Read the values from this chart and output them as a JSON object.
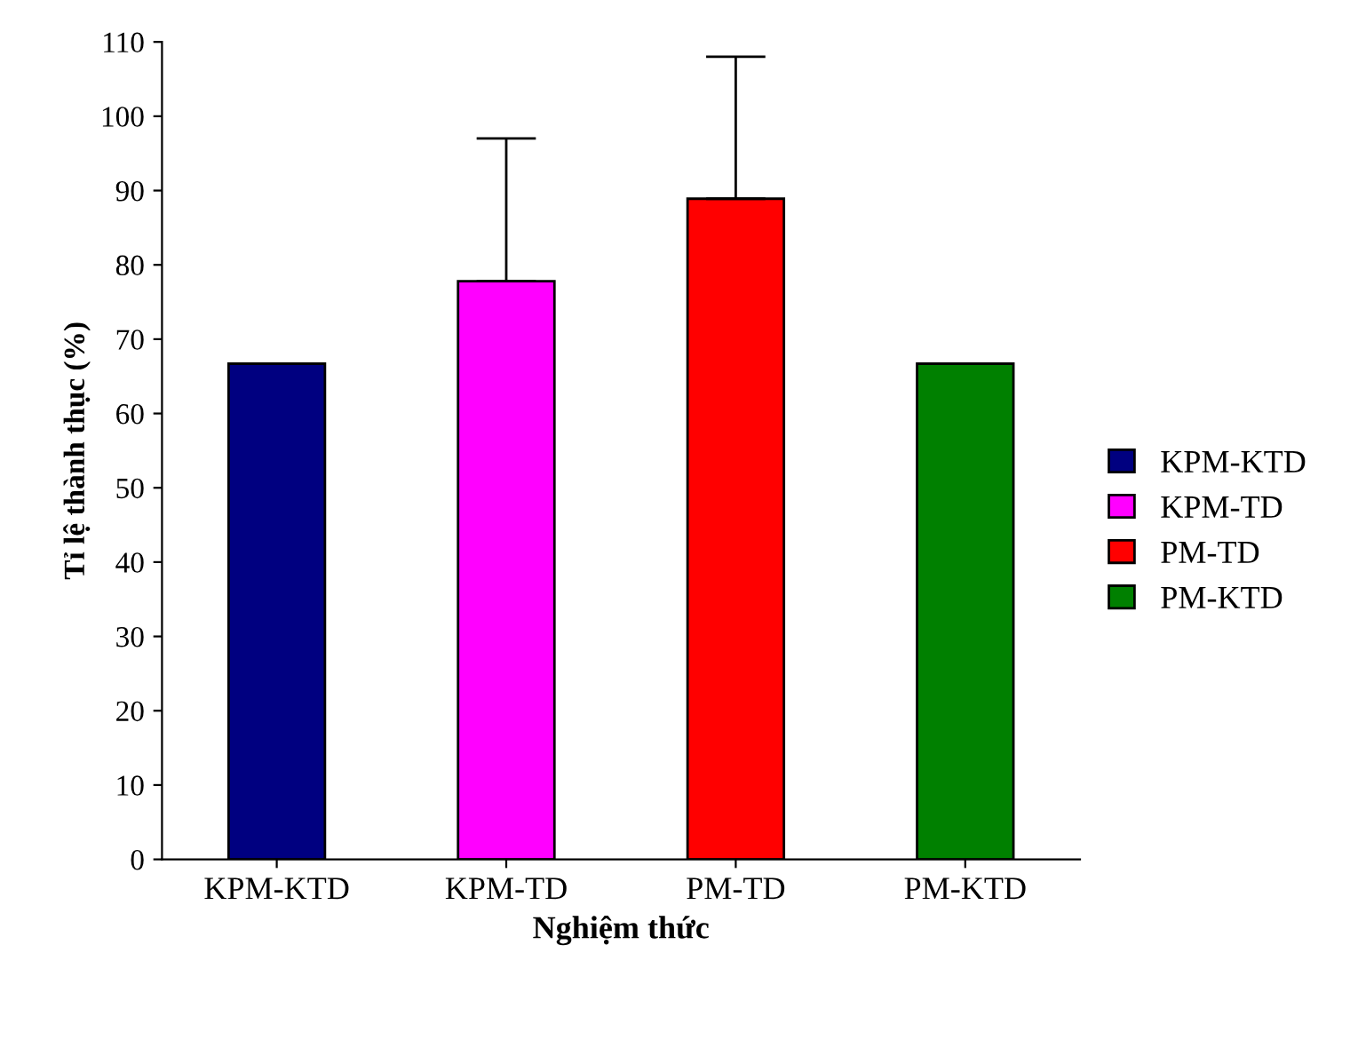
{
  "chart_data": {
    "type": "bar",
    "xlabel": "Nghiệm thức",
    "ylabel": "Tỉ lệ thành thục (%)",
    "categories": [
      "KPM-KTD",
      "KPM-TD",
      "PM-TD",
      "PM-KTD"
    ],
    "series": [
      {
        "name": "KPM-KTD",
        "color": "#000080",
        "values": [
          66.7,
          null,
          null,
          null
        ],
        "errors": [
          null,
          null,
          null,
          null
        ]
      },
      {
        "name": "KPM-TD",
        "color": "#ff00ff",
        "values": [
          null,
          77.8,
          null,
          null
        ],
        "errors": [
          null,
          [
            77.8,
            97
          ],
          null,
          null
        ]
      },
      {
        "name": "PM-TD",
        "color": "#ff0000",
        "values": [
          null,
          null,
          88.9,
          null
        ],
        "errors": [
          null,
          null,
          [
            88.9,
            108
          ],
          null
        ]
      },
      {
        "name": "PM-KTD",
        "color": "#008000",
        "values": [
          null,
          null,
          null,
          66.7
        ],
        "errors": [
          null,
          null,
          null,
          null
        ]
      }
    ],
    "ylim": [
      0,
      110
    ],
    "yticks": [
      0,
      10,
      20,
      30,
      40,
      50,
      60,
      70,
      80,
      90,
      100,
      110
    ],
    "grid": false,
    "legend": "right"
  }
}
